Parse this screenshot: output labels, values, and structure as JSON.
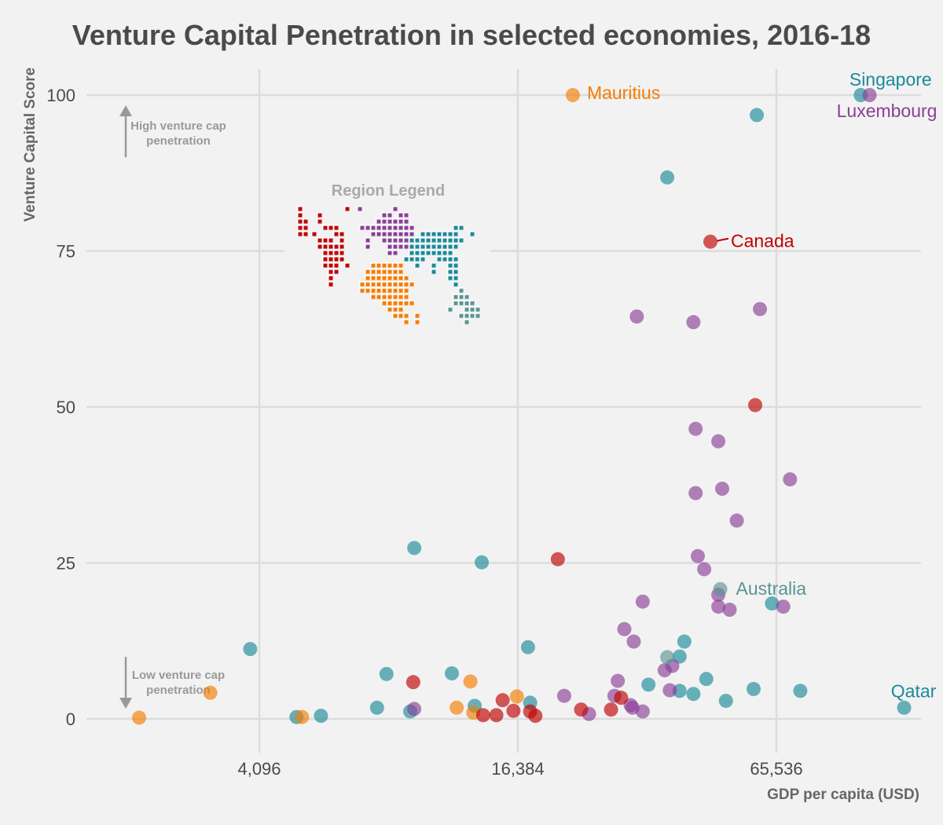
{
  "chart_data": {
    "type": "scatter",
    "title": "Venture Capital Penetration in selected economies, 2016-18",
    "xlabel": "GDP per capita (USD)",
    "ylabel": "Venture Capital Score",
    "x_scale": "log2",
    "xlim": [
      1500,
      160000
    ],
    "ylim": [
      -4,
      104
    ],
    "x_ticks": [
      4096,
      16384,
      65536
    ],
    "x_tick_labels": [
      "4,096",
      "16,384",
      "65,536"
    ],
    "y_ticks": [
      0,
      25,
      50,
      75,
      100
    ],
    "y_tick_labels": [
      "0",
      "25",
      "50",
      "75",
      "100"
    ],
    "grid": true,
    "annotations": {
      "high": "High venture cap\npenetration",
      "low": "Low venture cap\npenetration"
    },
    "legend": {
      "title": "Region Legend",
      "type": "world-map-glyph",
      "placement": "upper-left"
    },
    "region_colors": {
      "americas": "#c00000",
      "europe": "#8a3f96",
      "asia": "#1a8a99",
      "africa": "#f57c00",
      "oceania": "#5a9494"
    },
    "labeled_points": [
      {
        "label": "Singapore",
        "region": "asia",
        "x": 103000,
        "y": 100
      },
      {
        "label": "Luxembourg",
        "region": "europe",
        "x": 108000,
        "y": 100
      },
      {
        "label": "Mauritius",
        "region": "africa",
        "x": 22000,
        "y": 100
      },
      {
        "label": "Canada",
        "region": "americas",
        "x": 46000,
        "y": 76.5
      },
      {
        "label": "Australia",
        "region": "oceania",
        "x": 48500,
        "y": 20.8
      },
      {
        "label": "Qatar",
        "region": "asia",
        "x": 130000,
        "y": 1.8
      }
    ],
    "series": [
      {
        "region": "asia",
        "points": [
          [
            59000,
            96.8
          ],
          [
            36500,
            86.8
          ],
          [
            9400,
            27.4
          ],
          [
            13500,
            25.1
          ],
          [
            3900,
            11.2
          ],
          [
            17300,
            11.5
          ],
          [
            40000,
            12.4
          ],
          [
            39000,
            10.0
          ],
          [
            64000,
            18.5
          ],
          [
            45000,
            6.4
          ],
          [
            33000,
            5.5
          ],
          [
            8100,
            7.2
          ],
          [
            11500,
            7.3
          ],
          [
            58000,
            4.8
          ],
          [
            74500,
            4.5
          ],
          [
            39000,
            4.5
          ],
          [
            42000,
            4.0
          ],
          [
            50000,
            2.9
          ],
          [
            5700,
            0.5
          ],
          [
            5000,
            0.3
          ],
          [
            7700,
            1.8
          ],
          [
            9200,
            1.2
          ],
          [
            13000,
            2.1
          ],
          [
            17500,
            2.6
          ]
        ]
      },
      {
        "region": "europe",
        "points": [
          [
            31000,
            64.5
          ],
          [
            42000,
            63.6
          ],
          [
            60000,
            65.7
          ],
          [
            42500,
            46.5
          ],
          [
            48000,
            44.5
          ],
          [
            49000,
            36.9
          ],
          [
            42500,
            36.2
          ],
          [
            70500,
            38.4
          ],
          [
            53000,
            31.8
          ],
          [
            43000,
            26.1
          ],
          [
            44500,
            24.0
          ],
          [
            32000,
            18.8
          ],
          [
            48000,
            19.9
          ],
          [
            48000,
            18.0
          ],
          [
            51000,
            17.5
          ],
          [
            68000,
            18.0
          ],
          [
            29000,
            14.4
          ],
          [
            30500,
            12.4
          ],
          [
            28000,
            6.1
          ],
          [
            36000,
            7.8
          ],
          [
            37500,
            8.5
          ],
          [
            37000,
            4.6
          ],
          [
            21000,
            3.7
          ],
          [
            27500,
            3.7
          ],
          [
            30000,
            2.2
          ],
          [
            30300,
            1.8
          ],
          [
            32000,
            1.2
          ],
          [
            24000,
            0.8
          ],
          [
            9400,
            1.6
          ]
        ]
      },
      {
        "region": "africa",
        "points": [
          [
            2150,
            0.2
          ],
          [
            3150,
            4.2
          ],
          [
            5150,
            0.3
          ],
          [
            11800,
            1.8
          ],
          [
            12700,
            6.0
          ],
          [
            12900,
            1.0
          ],
          [
            16300,
            3.6
          ]
        ]
      },
      {
        "region": "americas",
        "points": [
          [
            58500,
            50.3
          ],
          [
            20300,
            25.6
          ],
          [
            9350,
            5.9
          ],
          [
            13600,
            0.6
          ],
          [
            14600,
            0.6
          ],
          [
            15100,
            3.0
          ],
          [
            16000,
            1.3
          ],
          [
            17500,
            1.2
          ],
          [
            18000,
            0.5
          ],
          [
            23000,
            1.5
          ],
          [
            27000,
            1.5
          ],
          [
            28500,
            3.4
          ]
        ]
      },
      {
        "region": "oceania",
        "points": [
          [
            36500,
            9.9
          ]
        ]
      }
    ]
  }
}
